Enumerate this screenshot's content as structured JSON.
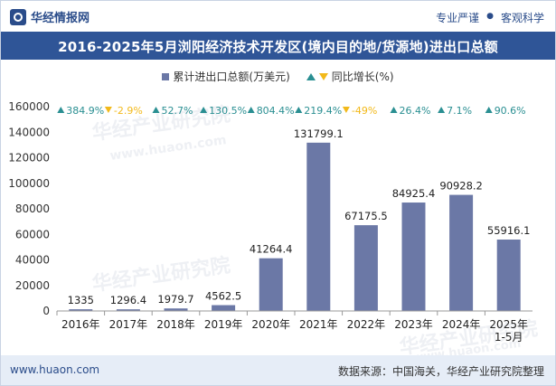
{
  "header": {
    "brand": "华经情报网",
    "tagline_left": "专业严谨",
    "tagline_sep": "●",
    "tagline_right": "客观科学"
  },
  "title": "2016-2025年5月浏阳经济技术开发区(境内目的地/货源地)进出口总额",
  "legend": {
    "bar_label": "累计进出口总额(万美元)",
    "line_label": "同比增长(%)"
  },
  "watermarks": [
    "华经产业研究院",
    "www.huaon.com",
    "华经产业研究院",
    "华经产业研究院",
    "www.huaon.com"
  ],
  "colors": {
    "bar": "#6b78a6",
    "growth_up": "#2a8f92",
    "growth_down": "#f2b91a",
    "title_bg": "#2f5597"
  },
  "chart_data": {
    "type": "bar",
    "categories": [
      "2016年",
      "2017年",
      "2018年",
      "2019年",
      "2020年",
      "2021年",
      "2022年",
      "2023年",
      "2024年",
      "2025年\n1-5月"
    ],
    "series": [
      {
        "name": "累计进出口总额(万美元)",
        "values": [
          1335,
          1296.4,
          1979.7,
          4562.5,
          41264.4,
          131799.1,
          67175.5,
          84925.4,
          90928.2,
          55916.1
        ],
        "labels": [
          "1335",
          "1296.4",
          "1979.7",
          "4562.5",
          "41264.4",
          "131799.1",
          "67175.5",
          "84925.4",
          "90928.2",
          "55916.1"
        ]
      },
      {
        "name": "同比增长(%)",
        "values": [
          384.9,
          -2.9,
          52.7,
          130.5,
          804.4,
          219.4,
          -49,
          26.4,
          7.1,
          90.6
        ],
        "labels": [
          "384.9%",
          "-2.9%",
          "52.7%",
          "130.5%",
          "804.4%",
          "219.4%",
          "-49%",
          "26.4%",
          "7.1%",
          "90.6%"
        ]
      }
    ],
    "yticks": [
      "0",
      "20000",
      "40000",
      "60000",
      "80000",
      "100000",
      "120000",
      "140000",
      "160000"
    ],
    "ylim": [
      0,
      160000
    ]
  },
  "footer": {
    "website": "www.huaon.com",
    "source": "数据来源：中国海关，华经产业研究院整理"
  }
}
